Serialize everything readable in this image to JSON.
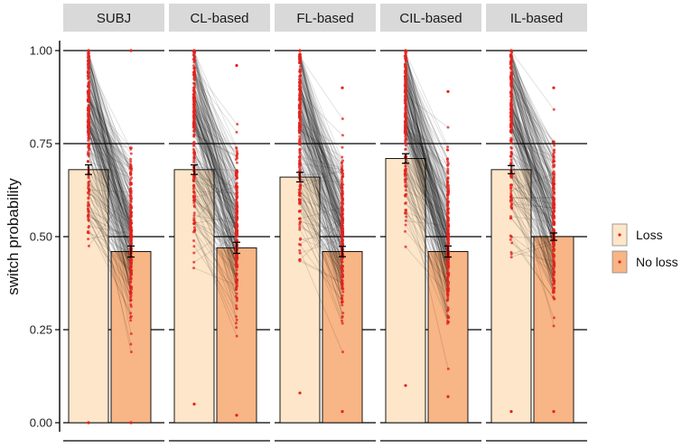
{
  "chart_data": {
    "type": "bar",
    "ylabel": "switch probability",
    "xlabel": "",
    "ylim": [
      0,
      1
    ],
    "yticks": [
      0.0,
      0.25,
      0.5,
      0.75,
      1.0
    ],
    "ytick_labels": [
      "0.00",
      "0.25",
      "0.50",
      "0.75",
      "1.00"
    ],
    "grid": "horizontal",
    "legend_position": "right",
    "facets": [
      "SUBJ",
      "CL-based",
      "FL-based",
      "CIL-based",
      "IL-based"
    ],
    "series": [
      {
        "name": "Loss",
        "color": "#fde6c9",
        "values": [
          0.68,
          0.68,
          0.66,
          0.71,
          0.68
        ],
        "error": [
          0.008,
          0.008,
          0.008,
          0.008,
          0.006
        ]
      },
      {
        "name": "No loss",
        "color": "#f8b585",
        "values": [
          0.46,
          0.47,
          0.46,
          0.46,
          0.5
        ],
        "error": [
          0.01,
          0.01,
          0.009,
          0.01,
          0.005
        ]
      }
    ],
    "point_color": "#e3221c",
    "line_color": "#000000",
    "individual_range": {
      "loss": [
        [
          0.0,
          1.0
        ],
        [
          0.05,
          1.0
        ],
        [
          0.08,
          1.0
        ],
        [
          0.1,
          1.0
        ],
        [
          0.03,
          1.0
        ]
      ],
      "no_loss": [
        [
          0.0,
          1.0
        ],
        [
          0.02,
          0.96
        ],
        [
          0.03,
          0.9
        ],
        [
          0.07,
          0.89
        ],
        [
          0.03,
          0.9
        ]
      ]
    }
  }
}
